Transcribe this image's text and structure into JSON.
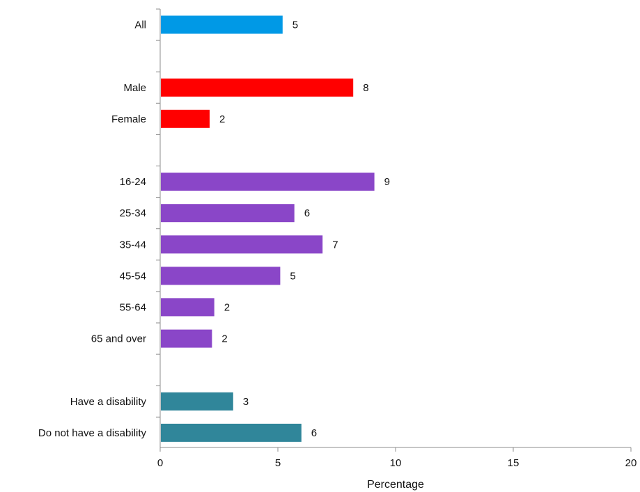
{
  "chart_data": {
    "type": "bar",
    "orientation": "horizontal",
    "title": "",
    "xlabel": "Percentage",
    "ylabel": "",
    "xlim": [
      0,
      20
    ],
    "x_ticks": [
      "0",
      "5",
      "10",
      "15",
      "20"
    ],
    "grid": false,
    "legend": "none",
    "groups": [
      {
        "color": "#0099e6",
        "bars": [
          {
            "label": "All",
            "value": 5.2,
            "data_label": "5"
          }
        ]
      },
      {
        "color": "#ff0000",
        "bars": [
          {
            "label": "Male",
            "value": 8.2,
            "data_label": "8"
          },
          {
            "label": "Female",
            "value": 2.1,
            "data_label": "2"
          }
        ]
      },
      {
        "color": "#8a46c8",
        "bars": [
          {
            "label": "16-24",
            "value": 9.1,
            "data_label": "9"
          },
          {
            "label": "25-34",
            "value": 5.7,
            "data_label": "6"
          },
          {
            "label": "35-44",
            "value": 6.9,
            "data_label": "7"
          },
          {
            "label": "45-54",
            "value": 5.1,
            "data_label": "5"
          },
          {
            "label": "55-64",
            "value": 2.3,
            "data_label": "2"
          },
          {
            "label": "65 and over",
            "value": 2.2,
            "data_label": "2"
          }
        ]
      },
      {
        "color": "#30869a",
        "bars": [
          {
            "label": "Have a disability",
            "value": 3.1,
            "data_label": "3"
          },
          {
            "label": "Do not have a disability",
            "value": 6.0,
            "data_label": "6"
          }
        ]
      }
    ]
  }
}
